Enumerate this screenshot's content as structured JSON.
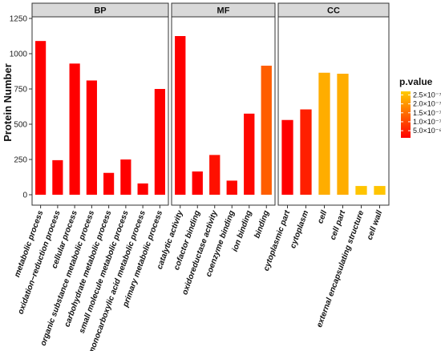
{
  "chart_data": {
    "type": "bar",
    "ylabel": "Protein Number",
    "ylim": [
      0,
      1300
    ],
    "yticks": [
      "0",
      "250",
      "500",
      "750",
      "1000",
      "1250"
    ],
    "ytick_values": [
      0,
      250,
      500,
      750,
      1000,
      1250
    ],
    "grid": false,
    "legend_position": "right",
    "legend": {
      "title": "p.value",
      "labels": [
        "2.5×10⁻⁷",
        "2.0×10⁻⁷",
        "1.5×10⁻⁷",
        "1.0×10⁻⁷",
        "5.0×10⁻⁸"
      ],
      "values": [
        2.5e-07,
        2e-07,
        1.5e-07,
        1e-07,
        5e-08
      ],
      "range": [
        1e-08,
        2.7e-07
      ],
      "color_low": "#ff0000",
      "color_high": "#ffcc00"
    },
    "panels": [
      {
        "strip": "BP",
        "categories": [
          "metabolic process",
          "oxidation−reduction process",
          "cellular process",
          "organic substance metabolic process",
          "carbohydrate metabolic process",
          "small molecule metabolic process",
          "monocarboxylic acid metabolic process",
          "primary metabolic process"
        ],
        "values": [
          1090,
          245,
          930,
          810,
          155,
          250,
          80,
          750
        ],
        "pvalues": [
          1e-08,
          1e-08,
          1e-08,
          1e-08,
          1e-08,
          1e-08,
          1e-08,
          1e-08
        ]
      },
      {
        "strip": "MF",
        "categories": [
          "catalytic activity",
          "cofactor binding",
          "oxidoreductase activity",
          "coenzyme binding",
          "ion binding",
          "binding"
        ],
        "values": [
          1125,
          165,
          282,
          100,
          575,
          915
        ],
        "pvalues": [
          1e-08,
          1e-08,
          3e-08,
          2e-08,
          2e-08,
          1.3e-07
        ]
      },
      {
        "strip": "CC",
        "categories": [
          "cytoplasmic part",
          "cytoplasm",
          "cell",
          "cell part",
          "external encapsulating structure",
          "cell wall"
        ],
        "values": [
          530,
          605,
          865,
          858,
          62,
          62
        ],
        "pvalues": [
          1e-08,
          5e-08,
          2.3e-07,
          2.3e-07,
          2.6e-07,
          2.6e-07
        ]
      }
    ]
  }
}
